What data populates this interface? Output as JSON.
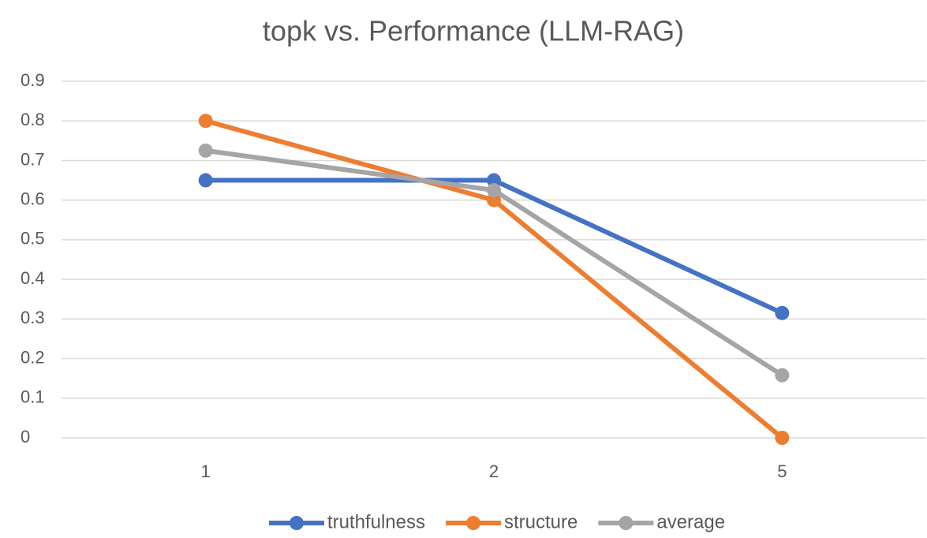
{
  "chart_data": {
    "type": "line",
    "title": "topk vs. Performance (LLM-RAG)",
    "categories": [
      "1",
      "2",
      "5"
    ],
    "series": [
      {
        "name": "truthfulness",
        "color": "#4472c4",
        "values": [
          0.65,
          0.65,
          0.315
        ]
      },
      {
        "name": "structure",
        "color": "#ed7d31",
        "values": [
          0.8,
          0.6,
          0
        ]
      },
      {
        "name": "average",
        "color": "#a5a5a5",
        "values": [
          0.725,
          0.625,
          0.158
        ]
      }
    ],
    "ylim": [
      0,
      0.9
    ],
    "yticks": [
      0,
      0.1,
      0.2,
      0.3,
      0.4,
      0.5,
      0.6,
      0.7,
      0.8,
      0.9
    ],
    "grid": true,
    "legend": "bottom"
  }
}
